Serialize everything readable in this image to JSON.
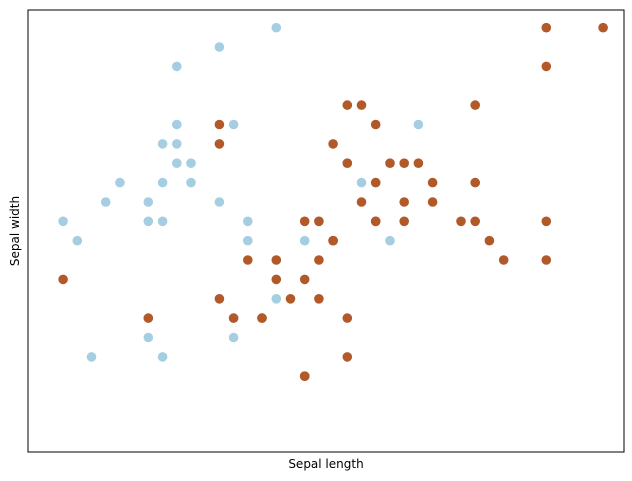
{
  "chart_data": {
    "type": "scatter",
    "xlabel": "Sepal length",
    "ylabel": "Sepal width",
    "xlim": [
      4.2,
      8.1
    ],
    "ylim": [
      1.9,
      4.0
    ],
    "ticks_shown": false,
    "grid": false,
    "series": [
      {
        "color": "#a6cee3",
        "points": [
          [
            4.3,
            3.0
          ],
          [
            4.4,
            2.9
          ],
          [
            4.5,
            2.3
          ],
          [
            4.6,
            3.1
          ],
          [
            4.7,
            3.2
          ],
          [
            4.9,
            3.1
          ],
          [
            4.9,
            2.4
          ],
          [
            4.9,
            2.5
          ],
          [
            4.9,
            3.0
          ],
          [
            5.0,
            3.4
          ],
          [
            5.0,
            3.0
          ],
          [
            5.0,
            3.2
          ],
          [
            5.0,
            2.3
          ],
          [
            5.1,
            3.5
          ],
          [
            5.1,
            3.4
          ],
          [
            5.1,
            3.3
          ],
          [
            5.1,
            3.8
          ],
          [
            5.2,
            3.2
          ],
          [
            5.2,
            3.3
          ],
          [
            5.4,
            3.9
          ],
          [
            5.4,
            3.4
          ],
          [
            5.4,
            3.1
          ],
          [
            5.5,
            2.4
          ],
          [
            5.5,
            3.5
          ],
          [
            5.5,
            2.5
          ],
          [
            5.6,
            3.0
          ],
          [
            5.6,
            2.9
          ],
          [
            5.8,
            4.0
          ],
          [
            5.8,
            2.7
          ],
          [
            5.8,
            2.6
          ],
          [
            5.8,
            2.8
          ],
          [
            6.0,
            2.2
          ],
          [
            6.0,
            2.9
          ],
          [
            6.1,
            3.0
          ],
          [
            6.3,
            3.3
          ],
          [
            6.4,
            3.2
          ],
          [
            6.5,
            3.2
          ],
          [
            6.6,
            2.9
          ],
          [
            6.8,
            3.5
          ]
        ]
      },
      {
        "color": "#b15928",
        "points": [
          [
            4.9,
            2.5
          ],
          [
            5.4,
            3.4
          ],
          [
            5.5,
            2.5
          ],
          [
            6.0,
            2.2
          ],
          [
            6.1,
            3.0
          ],
          [
            5.8,
            2.7
          ],
          [
            6.2,
            2.9
          ],
          [
            6.5,
            3.5
          ],
          [
            7.7,
            3.8
          ],
          [
            6.7,
            3.3
          ],
          [
            5.7,
            2.5
          ],
          [
            5.6,
            2.8
          ],
          [
            6.3,
            2.3
          ],
          [
            7.2,
            3.6
          ],
          [
            6.2,
            3.4
          ],
          [
            6.3,
            3.6
          ],
          [
            6.6,
            3.3
          ],
          [
            6.0,
            3.0
          ],
          [
            6.9,
            3.1
          ],
          [
            6.9,
            3.2
          ],
          [
            7.2,
            3.0
          ],
          [
            7.1,
            3.0
          ],
          [
            7.3,
            2.9
          ],
          [
            7.7,
            2.8
          ],
          [
            7.4,
            2.8
          ],
          [
            7.7,
            3.0
          ],
          [
            6.7,
            3.1
          ],
          [
            6.3,
            2.5
          ],
          [
            6.0,
            2.7
          ],
          [
            6.1,
            2.8
          ],
          [
            6.7,
            3.0
          ],
          [
            6.8,
            3.3
          ],
          [
            7.2,
            3.2
          ],
          [
            6.1,
            2.6
          ],
          [
            5.8,
            2.8
          ],
          [
            6.5,
            3.0
          ],
          [
            6.0,
            2.2
          ],
          [
            7.7,
            4.0
          ],
          [
            6.4,
            3.1
          ],
          [
            6.5,
            3.2
          ],
          [
            8.1,
            4.0
          ],
          [
            5.7,
            2.5
          ],
          [
            5.4,
            2.6
          ],
          [
            5.9,
            2.6
          ],
          [
            6.5,
            3.0
          ],
          [
            4.3,
            2.7
          ],
          [
            6.4,
            3.6
          ],
          [
            5.4,
            3.5
          ],
          [
            6.2,
            2.9
          ],
          [
            6.3,
            3.3
          ]
        ]
      }
    ]
  }
}
